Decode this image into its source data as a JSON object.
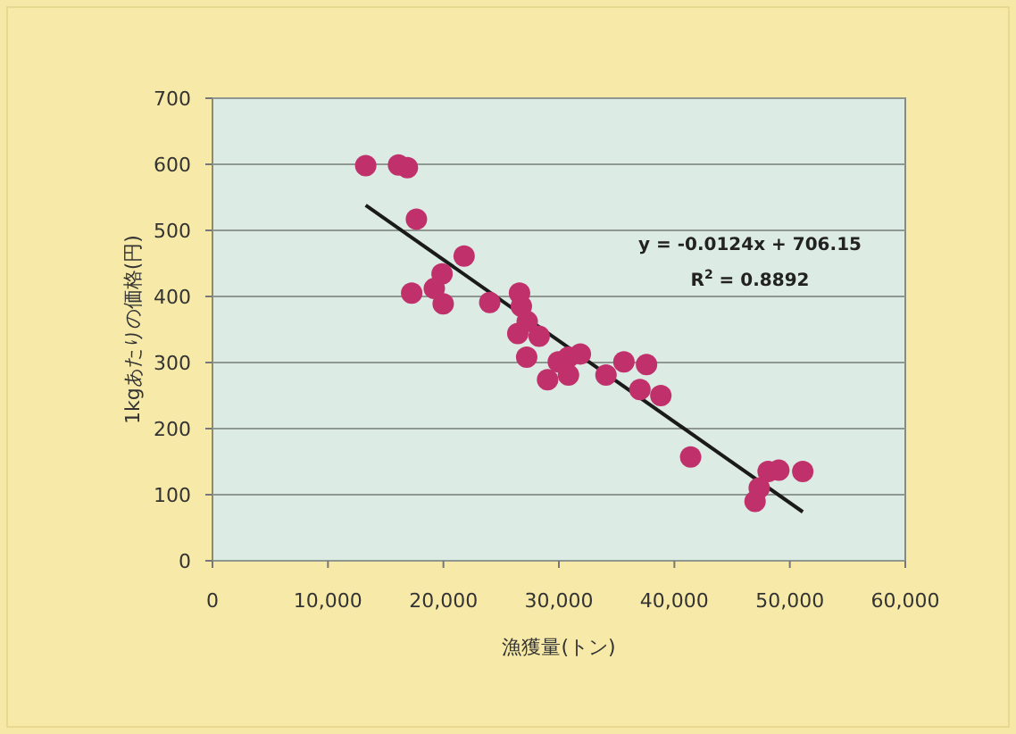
{
  "chart_data": {
    "type": "scatter",
    "xlabel": "漁獲量(トン)",
    "ylabel": "1kgあたりの価格(円)",
    "xlim": [
      0,
      60000
    ],
    "ylim": [
      0,
      700
    ],
    "xticks": [
      0,
      {
        "value": 10000,
        "label": "10,000"
      },
      {
        "value": 20000,
        "label": "20,000"
      },
      {
        "value": 30000,
        "label": "30,000"
      },
      {
        "value": 40000,
        "label": "40,000"
      },
      {
        "value": 50000,
        "label": "50,000"
      },
      {
        "value": 60000,
        "label": "60,000"
      }
    ],
    "yticks": [
      0,
      100,
      200,
      300,
      400,
      500,
      600,
      700
    ],
    "grid": "y",
    "annotations": [
      "y = -0.0124x + 706.15",
      "R$^{2}$ = 0.8892"
    ],
    "series": [
      {
        "type": "scatter",
        "marker": "circle",
        "color": "#c0306a",
        "x": [
          13270,
          16110,
          16880,
          17660,
          17250,
          21790,
          19880,
          19980,
          19210,
          24010,
          26590,
          26750,
          26440,
          27260,
          27210,
          28290,
          29020,
          29950,
          30830,
          30830,
          31860,
          34080,
          35630,
          37590,
          37020,
          38830,
          41410,
          46990,
          47350,
          48120,
          49050,
          51120
        ],
        "values": [
          598,
          599,
          595,
          517,
          405,
          461,
          434,
          389,
          412,
          391,
          405,
          385,
          344,
          362,
          308,
          340,
          274,
          301,
          308,
          281,
          313,
          281,
          301,
          297,
          259,
          250,
          157,
          90,
          110,
          135,
          137,
          135
        ]
      },
      {
        "type": "line",
        "marker": "none",
        "color": "#1a1a1a",
        "x": [
          13270,
          51120
        ],
        "values": [
          538,
          74
        ]
      }
    ]
  }
}
